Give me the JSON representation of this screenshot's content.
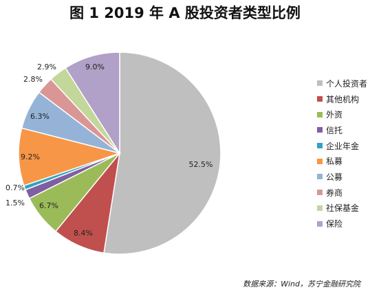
{
  "chart_data": {
    "type": "pie",
    "title": "图 1  2019 年 A 股投资者类型比例",
    "legend_position": "right",
    "slices": [
      {
        "label": "个人投资者",
        "value": 52.5,
        "value_label": "52.5%",
        "color": "#bfbfbf"
      },
      {
        "label": "其他机构",
        "value": 8.4,
        "value_label": "8.4%",
        "color": "#c0504d"
      },
      {
        "label": "外资",
        "value": 6.7,
        "value_label": "6.7%",
        "color": "#9bbb59"
      },
      {
        "label": "信托",
        "value": 1.5,
        "value_label": "1.5%",
        "color": "#7f5fa1"
      },
      {
        "label": "企业年金",
        "value": 0.7,
        "value_label": "0.7%",
        "color": "#31a3c0"
      },
      {
        "label": "私募",
        "value": 9.2,
        "value_label": "9.2%",
        "color": "#f79646"
      },
      {
        "label": "公募",
        "value": 6.3,
        "value_label": "6.3%",
        "color": "#95b3d7"
      },
      {
        "label": "券商",
        "value": 2.8,
        "value_label": "2.8%",
        "color": "#da9694"
      },
      {
        "label": "社保基金",
        "value": 2.9,
        "value_label": "2.9%",
        "color": "#c4d79b"
      },
      {
        "label": "保险",
        "value": 9.0,
        "value_label": "9.0%",
        "color": "#b1a0c7"
      }
    ]
  },
  "source": "数据来源：Wind，苏宁金融研究院"
}
